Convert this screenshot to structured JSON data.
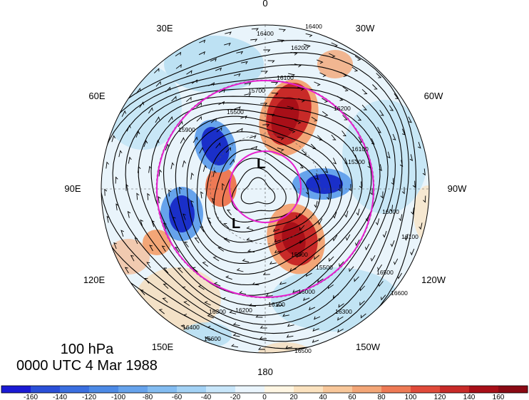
{
  "map": {
    "level_label": "100 hPa",
    "time_label": "0000 UTC 4 Mar 1988",
    "longitude_labels": [
      "0",
      "30W",
      "60W",
      "90W",
      "120W",
      "150W",
      "180",
      "150E",
      "120E",
      "90E",
      "60E",
      "30E"
    ],
    "pressure_lows": [
      "L",
      "L"
    ],
    "contour_labels": [
      "16400",
      "16200",
      "16100",
      "15700",
      "15500",
      "16200",
      "16100",
      "15900",
      "16400",
      "16600",
      "16500",
      "16300",
      "15500",
      "16000",
      "16100",
      "16200",
      "16300",
      "16400",
      "16500",
      "16600",
      "16100",
      "16000",
      "15300",
      "15300"
    ],
    "colors": {
      "strong_negative": "#1a2fc9",
      "negative": "#4f8fe8",
      "weak_negative": "#a9d8f0",
      "neutral": "#ffffff",
      "weak_positive": "#f7d8b0",
      "positive": "#e85a3a",
      "strong_positive": "#b00a1a",
      "ring": "#e61ecf"
    },
    "icons": [
      "wind-barb-icon"
    ]
  },
  "colorbar": {
    "tick_labels": [
      "-160",
      "-140",
      "-120",
      "-100",
      "-80",
      "-60",
      "-40",
      "-20",
      "0",
      "20",
      "40",
      "60",
      "80",
      "100",
      "120",
      "140",
      "160"
    ],
    "bin_colors": [
      "#1a1ad4",
      "#2a4fd8",
      "#3a6fe0",
      "#4c8ae6",
      "#66a3ec",
      "#83bcf1",
      "#a3d2f5",
      "#c8e6fa",
      "#eaf5fd",
      "#fff6e3",
      "#fbe2bf",
      "#f8c79a",
      "#f3a677",
      "#ee7a55",
      "#e04a3a",
      "#c82a28",
      "#a80f18",
      "#8a0a14"
    ]
  }
}
